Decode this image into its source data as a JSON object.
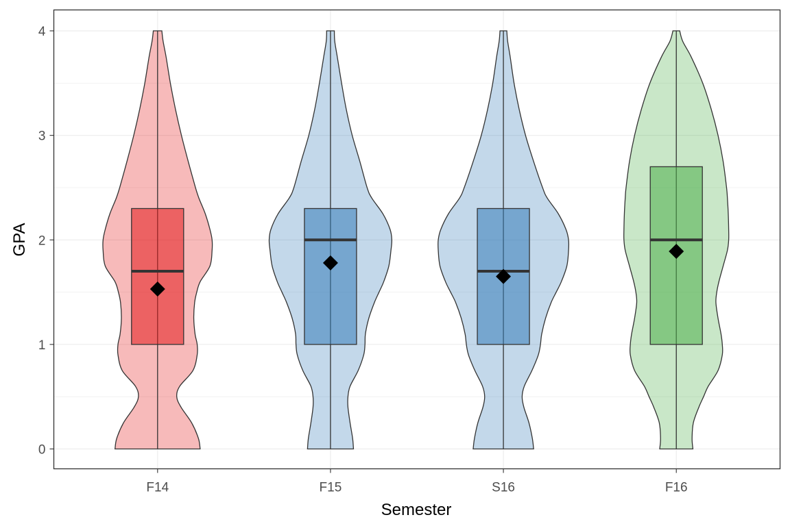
{
  "chart_data": {
    "type": "violin",
    "title": "",
    "xlabel": "Semester",
    "ylabel": "GPA",
    "categories": [
      "F14",
      "F15",
      "S16",
      "F16"
    ],
    "ylim": [
      -0.19,
      4.2
    ],
    "yticks": [
      "0",
      "1",
      "2",
      "3",
      "4"
    ],
    "grid": true,
    "legend": "none",
    "colors": {
      "F14": "#e41a1c",
      "F15": "#377eb8",
      "S16": "#377eb8",
      "F16": "#4daf4a"
    },
    "box": [
      {
        "category": "F14",
        "q1": 1.0,
        "median": 1.7,
        "q3": 2.3,
        "min": 0.0,
        "max": 4.0,
        "mean": 1.53
      },
      {
        "category": "F15",
        "q1": 1.0,
        "median": 2.0,
        "q3": 2.3,
        "min": 0.0,
        "max": 4.0,
        "mean": 1.78
      },
      {
        "category": "S16",
        "q1": 1.0,
        "median": 1.7,
        "q3": 2.3,
        "min": 0.0,
        "max": 4.0,
        "mean": 1.65
      },
      {
        "category": "F16",
        "q1": 1.0,
        "median": 2.0,
        "q3": 2.7,
        "min": 0.0,
        "max": 4.0,
        "mean": 1.89
      }
    ],
    "density_profile": {
      "y": [
        0,
        0.1,
        0.25,
        0.4,
        0.5,
        0.6,
        0.75,
        0.9,
        1.0,
        1.1,
        1.25,
        1.4,
        1.5,
        1.6,
        1.75,
        1.9,
        2.0,
        2.1,
        2.25,
        2.4,
        2.5,
        2.75,
        3.0,
        3.25,
        3.5,
        3.75,
        3.9,
        4.0
      ],
      "F14": [
        1.0,
        0.96,
        0.8,
        0.55,
        0.45,
        0.52,
        0.83,
        0.93,
        0.93,
        0.88,
        0.85,
        0.87,
        0.92,
        1.0,
        1.23,
        1.28,
        1.28,
        1.23,
        1.12,
        0.97,
        0.89,
        0.72,
        0.56,
        0.42,
        0.3,
        0.2,
        0.13,
        0.1
      ],
      "F15": [
        0.54,
        0.52,
        0.46,
        0.41,
        0.41,
        0.46,
        0.65,
        0.78,
        0.81,
        0.82,
        0.9,
        1.03,
        1.14,
        1.25,
        1.37,
        1.42,
        1.44,
        1.4,
        1.23,
        0.97,
        0.86,
        0.69,
        0.51,
        0.37,
        0.26,
        0.16,
        0.1,
        0.09
      ],
      "S16": [
        0.71,
        0.68,
        0.6,
        0.48,
        0.44,
        0.49,
        0.67,
        0.82,
        0.87,
        0.9,
        0.99,
        1.12,
        1.24,
        1.36,
        1.49,
        1.53,
        1.53,
        1.47,
        1.29,
        1.03,
        0.92,
        0.71,
        0.52,
        0.37,
        0.25,
        0.16,
        0.1,
        0.08
      ],
      "F16": [
        0.39,
        0.37,
        0.4,
        0.53,
        0.64,
        0.75,
        0.98,
        1.08,
        1.08,
        1.05,
        0.98,
        0.93,
        0.95,
        1.0,
        1.1,
        1.2,
        1.23,
        1.23,
        1.22,
        1.2,
        1.18,
        1.1,
        0.98,
        0.82,
        0.62,
        0.35,
        0.15,
        0.08
      ]
    }
  }
}
